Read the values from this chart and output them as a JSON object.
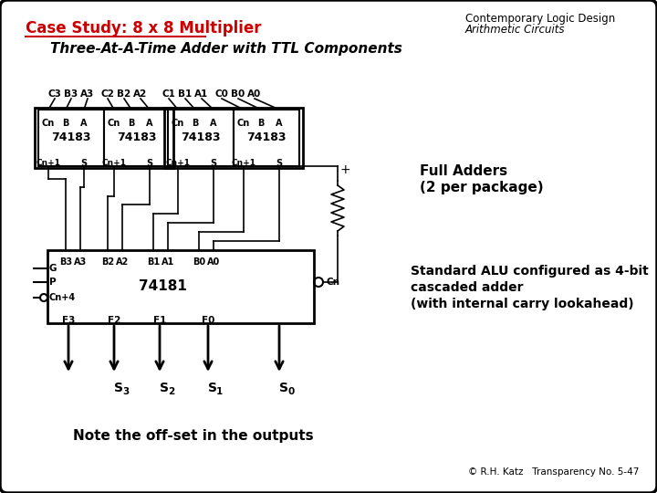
{
  "title_left": "Case Study: 8 x 8 Multiplier",
  "title_right_line1": "Contemporary Logic Design",
  "title_right_line2": "Arithmetic Circuits",
  "subtitle": "Three-At-A-Time Adder with TTL Components",
  "right_label1": "Full Adders",
  "right_label2": "(2 per package)",
  "right_label3": "Standard ALU configured as 4-bit",
  "right_label4": "cascaded adder",
  "right_label5": "(with internal carry lookahead)",
  "bottom_note": "Note the off-set in the outputs",
  "copyright": "© R.H. Katz   Transparency No. 5-47",
  "bg_color": "#ffffff",
  "border_color": "#000000",
  "title_color": "#cc0000",
  "text_color": "#000000",
  "input_labels": [
    "C3",
    "B3",
    "A3",
    "C2",
    "B2",
    "A2",
    "C1",
    "B1",
    "A1",
    "C0",
    "B0",
    "A0"
  ],
  "chip_label": "74183",
  "alu_label": "74181",
  "alu_in_labels": [
    "B3",
    "A3",
    "B2",
    "A2",
    "B1",
    "A1",
    "B0",
    "A0"
  ],
  "alu_out_labels": [
    "F3",
    "F2",
    "F1",
    "F0"
  ],
  "s_labels": [
    "S",
    "S",
    "S",
    "S"
  ],
  "s_subs": [
    "3",
    "2",
    "1",
    "0"
  ]
}
